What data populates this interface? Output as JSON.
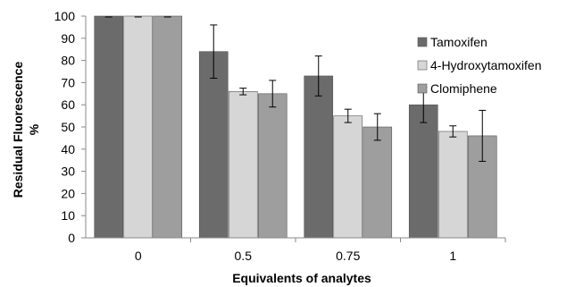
{
  "chart_data": {
    "type": "bar",
    "title": "",
    "xlabel": "Equivalents of analytes",
    "ylabel_line1": "Residual Fluorescence",
    "ylabel_line2": "%",
    "categories": [
      "0",
      "0.5",
      "0.75",
      "1"
    ],
    "ylim": [
      0,
      100
    ],
    "yticks": [
      "0",
      "10",
      "20",
      "30",
      "40",
      "50",
      "60",
      "70",
      "80",
      "90",
      "100"
    ],
    "grid": false,
    "legend_position": "right",
    "series": [
      {
        "name": "Tamoxifen",
        "color": "#6b6b6b",
        "values": [
          100,
          84,
          73,
          60
        ],
        "errors": [
          0,
          12,
          9,
          8
        ]
      },
      {
        "name": "4-Hydroxytamoxifen",
        "color": "#d6d6d6",
        "values": [
          100,
          66,
          55,
          48
        ],
        "errors": [
          0,
          1.5,
          3,
          2.5
        ]
      },
      {
        "name": "Clomiphene",
        "color": "#9e9e9e",
        "values": [
          100,
          65,
          50,
          46
        ],
        "errors": [
          0,
          6,
          6,
          11.5
        ]
      }
    ]
  }
}
